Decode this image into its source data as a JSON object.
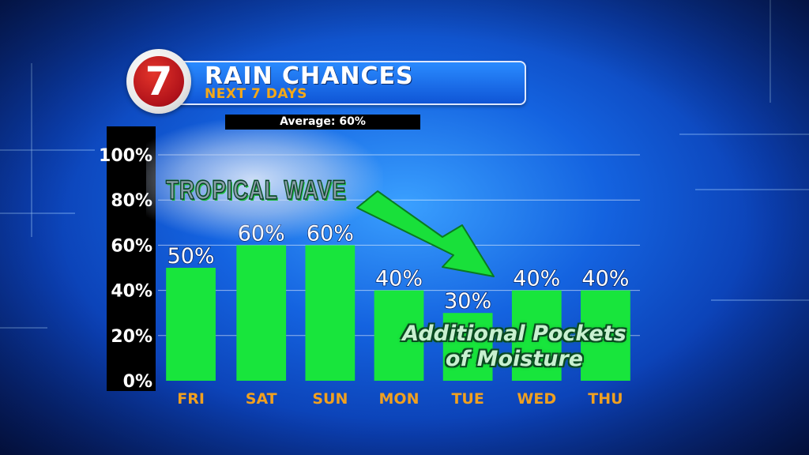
{
  "header": {
    "logo_text": "7",
    "title": "RAIN CHANCES",
    "subtitle": "NEXT 7 DAYS",
    "average_label": "Average: 60%"
  },
  "annotations": {
    "tropical_wave": "TROPICAL WAVE",
    "moisture_line1": "Additional Pockets",
    "moisture_line2": "of Moisture"
  },
  "colors": {
    "bar": "#18e53c",
    "day_label": "#f0a020",
    "value_label": "#ffffff",
    "grid": "#ffffff",
    "arrow": "#19e03a"
  },
  "chart_data": {
    "type": "bar",
    "categories": [
      "FRI",
      "SAT",
      "SUN",
      "MON",
      "TUE",
      "WED",
      "THU"
    ],
    "values": [
      50,
      60,
      60,
      40,
      30,
      40,
      40
    ],
    "value_labels": [
      "50%",
      "60%",
      "60%",
      "40%",
      "30%",
      "40%",
      "40%"
    ],
    "ylim": [
      0,
      100
    ],
    "yticks": [
      0,
      20,
      40,
      60,
      80,
      100
    ],
    "ytick_labels": [
      "0%",
      "20%",
      "40%",
      "60%",
      "80%",
      "100%"
    ],
    "grid": true
  }
}
